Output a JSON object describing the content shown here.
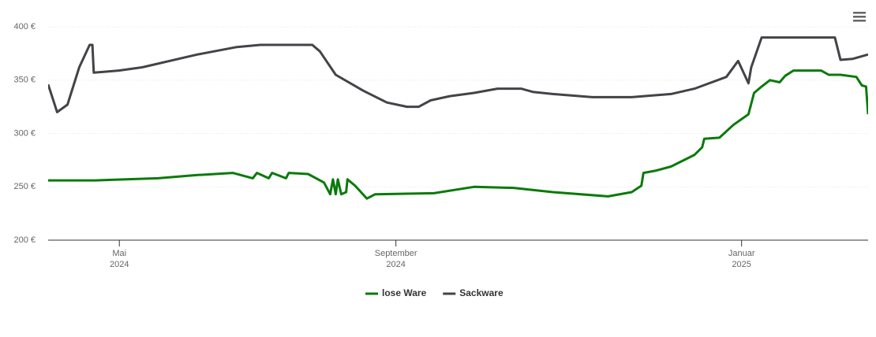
{
  "chart_data": {
    "type": "line",
    "xlim": [
      2.97,
      14.83
    ],
    "xticks": [
      {
        "value": 4,
        "label": "Mai 2024"
      },
      {
        "value": 8,
        "label": "September 2024"
      },
      {
        "value": 13,
        "label": "Januar 2025"
      }
    ],
    "ylim": [
      200,
      400
    ],
    "yticks": [
      {
        "value": 200,
        "label": "200 €"
      },
      {
        "value": 250,
        "label": "250 €"
      },
      {
        "value": 300,
        "label": "300 €"
      },
      {
        "value": 350,
        "label": "350 €"
      },
      {
        "value": 400,
        "label": "400 €"
      }
    ],
    "grid": true,
    "legend": "bottom",
    "series": [
      {
        "name": "lose Ware",
        "color": "#0a7a0a",
        "x": [
          2.97,
          3.65,
          4.56,
          5.13,
          5.64,
          5.93,
          5.99,
          6.16,
          6.21,
          6.41,
          6.45,
          6.73,
          6.96,
          7.05,
          7.09,
          7.13,
          7.16,
          7.21,
          7.28,
          7.3,
          7.41,
          7.58,
          7.7,
          8.55,
          9.13,
          9.7,
          10.27,
          11.07,
          11.41,
          11.55,
          11.58,
          11.75,
          11.98,
          12.32,
          12.43,
          12.46,
          12.68,
          12.88,
          13.1,
          13.18,
          13.29,
          13.41,
          13.55,
          13.63,
          13.75,
          14.03,
          14.15,
          14.26,
          14.43,
          14.66,
          14.74,
          14.8,
          14.83
        ],
        "values": [
          256,
          256,
          258,
          261,
          263,
          258,
          263,
          258,
          263,
          258,
          263,
          262,
          254,
          243,
          257,
          243,
          257,
          243,
          245,
          257,
          251,
          239,
          243,
          244,
          250,
          249,
          245,
          241,
          245,
          251,
          263,
          265,
          269,
          280,
          287,
          295,
          296,
          308,
          318,
          338,
          344,
          350,
          348,
          354,
          359,
          359,
          359,
          355,
          355,
          353,
          345,
          344,
          318
        ]
      },
      {
        "name": "Sackware",
        "color": "#434348",
        "x": [
          2.97,
          3.1,
          3.25,
          3.42,
          3.57,
          3.61,
          3.63,
          3.99,
          4.33,
          5.13,
          5.7,
          6.04,
          6.79,
          6.9,
          7.13,
          7.53,
          7.87,
          8.16,
          8.33,
          8.5,
          8.78,
          9.13,
          9.47,
          9.81,
          9.98,
          10.27,
          10.84,
          11.41,
          11.98,
          12.32,
          12.78,
          12.95,
          13.1,
          13.14,
          13.29,
          14.35,
          14.43,
          14.61,
          14.83
        ],
        "values": [
          346,
          320,
          327,
          362,
          383,
          383,
          357,
          359,
          362,
          374,
          381,
          383,
          383,
          377,
          355,
          340,
          329,
          325,
          325,
          331,
          335,
          338,
          342,
          342,
          339,
          337,
          334,
          334,
          337,
          342,
          353,
          368,
          347,
          362,
          390,
          390,
          369,
          370,
          374
        ]
      }
    ]
  }
}
